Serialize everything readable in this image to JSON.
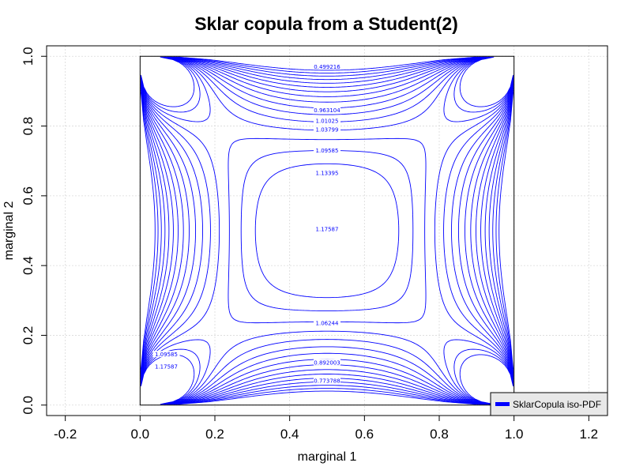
{
  "chart_data": {
    "type": "contour",
    "title": "Sklar copula from a Student(2)",
    "xlabel": "marginal 1",
    "ylabel": "marginal 2",
    "xlim": [
      -0.25,
      1.25
    ],
    "ylim": [
      -0.03,
      1.03
    ],
    "x_ticks": [
      "-0.2",
      "0.0",
      "0.2",
      "0.4",
      "0.6",
      "0.8",
      "1.0",
      "1.2"
    ],
    "y_ticks": [
      "0.0",
      "0.2",
      "0.4",
      "0.6",
      "0.8",
      "1.0"
    ],
    "grid": true,
    "legend": {
      "position": "bottom-right",
      "entries": [
        "SklarCopula iso-PDF"
      ]
    },
    "series_color": "#0000ff",
    "contour_label_values": [
      "0.499216",
      "0.963104",
      "1.01025",
      "1.03799",
      "1.09585",
      "1.13395",
      "1.17587",
      "1.06244",
      "0.892003",
      "0.773788",
      "1.09585",
      "1.17587"
    ],
    "level_count": 16
  }
}
